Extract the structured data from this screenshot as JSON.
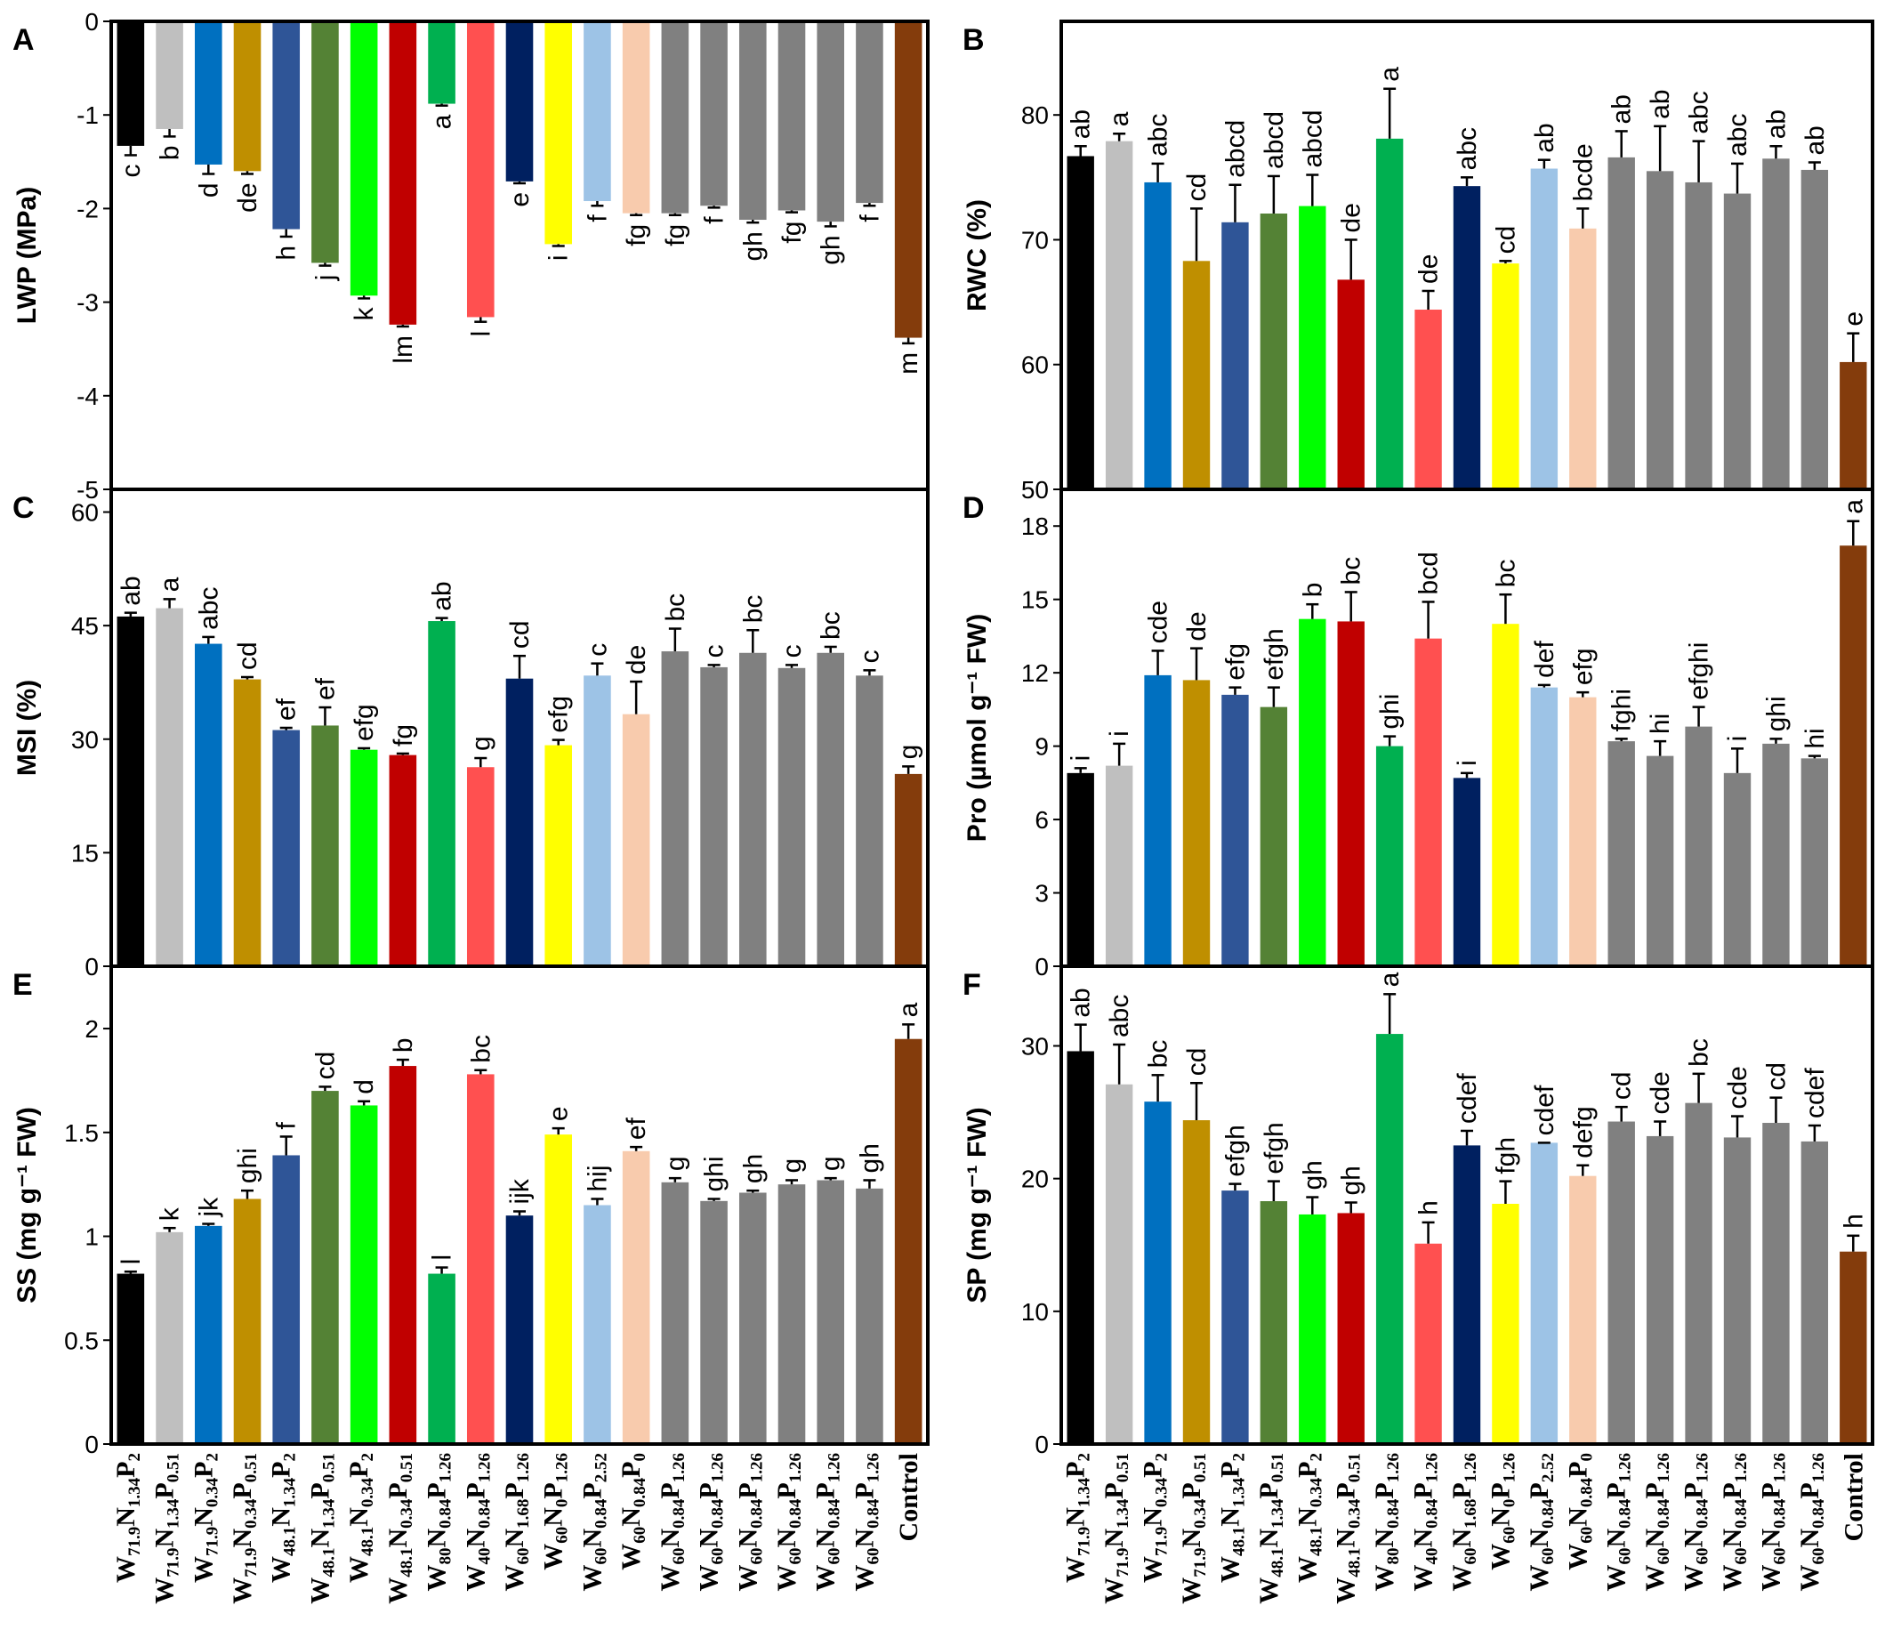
{
  "categories": [
    {
      "w": "71.9",
      "n": "1.34",
      "p": "2"
    },
    {
      "w": "71.9",
      "n": "1.34",
      "p": "0.51"
    },
    {
      "w": "71.9",
      "n": "0.34",
      "p": "2"
    },
    {
      "w": "71.9",
      "n": "0.34",
      "p": "0.51"
    },
    {
      "w": "48.1",
      "n": "1.34",
      "p": "2"
    },
    {
      "w": "48.1",
      "n": "1.34",
      "p": "0.51"
    },
    {
      "w": "48.1",
      "n": "0.34",
      "p": "2"
    },
    {
      "w": "48.1",
      "n": "0.34",
      "p": "0.51"
    },
    {
      "w": "80",
      "n": "0.84",
      "p": "1.26"
    },
    {
      "w": "40",
      "n": "0.84",
      "p": "1.26"
    },
    {
      "w": "60",
      "n": "1.68",
      "p": "1.26"
    },
    {
      "w": "60",
      "n": "0",
      "p": "1.26"
    },
    {
      "w": "60",
      "n": "0.84",
      "p": "2.52"
    },
    {
      "w": "60",
      "n": "0.84",
      "p": "0"
    },
    {
      "w": "60",
      "n": "0.84",
      "p": "1.26"
    },
    {
      "w": "60",
      "n": "0.84",
      "p": "1.26"
    },
    {
      "w": "60",
      "n": "0.84",
      "p": "1.26"
    },
    {
      "w": "60",
      "n": "0.84",
      "p": "1.26"
    },
    {
      "w": "60",
      "n": "0.84",
      "p": "1.26"
    },
    {
      "w": "60",
      "n": "0.84",
      "p": "1.26"
    },
    {
      "control": "Control"
    }
  ],
  "bar_colors": [
    "#000000",
    "#bfbfbf",
    "#0070c0",
    "#bf8f00",
    "#2f5597",
    "#548235",
    "#00ff00",
    "#c00000",
    "#00b050",
    "#ff5050",
    "#002060",
    "#ffff00",
    "#9dc3e6",
    "#f8cbad",
    "#808080",
    "#808080",
    "#808080",
    "#808080",
    "#808080",
    "#808080",
    "#843c0c"
  ],
  "chart_data": [
    {
      "type": "bar",
      "panel": "A",
      "ylabel": "LWP (MPa)",
      "ylim": [
        -5,
        0
      ],
      "ticks": [
        "0",
        "-1",
        "-2",
        "-3",
        "-4",
        "-5"
      ],
      "values": [
        -1.33,
        -1.15,
        -1.53,
        -1.6,
        -2.22,
        -2.58,
        -2.93,
        -3.24,
        -0.88,
        -3.16,
        -1.71,
        -2.38,
        -1.92,
        -2.05,
        -2.05,
        -1.97,
        -2.12,
        -2.02,
        -2.14,
        -1.94,
        -3.38
      ],
      "errors": [
        0.1,
        0.08,
        0.1,
        0.03,
        0.08,
        0.03,
        0.03,
        0.02,
        0.02,
        0.05,
        0.02,
        0.02,
        0.05,
        0.02,
        0.02,
        0.02,
        0.03,
        0.02,
        0.05,
        0.03,
        0.06
      ],
      "letters": [
        "c",
        "b",
        "d",
        "de",
        "h",
        "j",
        "k",
        "lm",
        "a",
        "l",
        "e",
        "i",
        "f",
        "fg",
        "fg",
        "f",
        "gh",
        "fg",
        "gh",
        "f",
        "m"
      ]
    },
    {
      "type": "bar",
      "panel": "B",
      "ylabel": "RWC (%)",
      "ylim": [
        50,
        87.5
      ],
      "ticks": [
        "50",
        "60",
        "70",
        "80"
      ],
      "values": [
        76.7,
        77.9,
        74.6,
        68.3,
        71.4,
        72.1,
        72.7,
        66.8,
        78.1,
        64.4,
        74.3,
        68.1,
        75.7,
        70.9,
        76.6,
        75.5,
        74.6,
        73.7,
        76.5,
        75.6,
        60.2
      ],
      "errors": [
        0.8,
        0.6,
        1.5,
        4.2,
        3.0,
        3.0,
        2.5,
        3.2,
        4.0,
        1.5,
        0.7,
        0.2,
        0.7,
        1.6,
        2.1,
        3.6,
        3.3,
        2.4,
        1.0,
        0.6,
        2.3
      ],
      "letters": [
        "ab",
        "a",
        "abc",
        "cd",
        "abcd",
        "abcd",
        "abcd",
        "de",
        "a",
        "de",
        "abc",
        "cd",
        "ab",
        "bcde",
        "ab",
        "ab",
        "abc",
        "abc",
        "ab",
        "ab",
        "e"
      ]
    },
    {
      "type": "bar",
      "panel": "C",
      "ylabel": "MSI (%)",
      "ylim": [
        0,
        63
      ],
      "ticks": [
        "0",
        "15",
        "30",
        "45",
        "60"
      ],
      "values": [
        46.2,
        47.3,
        42.6,
        37.9,
        31.2,
        31.8,
        28.6,
        27.9,
        45.6,
        26.3,
        38.0,
        29.2,
        38.4,
        33.3,
        41.6,
        39.5,
        41.4,
        39.4,
        41.4,
        38.4,
        25.4
      ],
      "errors": [
        0.5,
        1.2,
        0.9,
        0.3,
        0.3,
        2.4,
        0.2,
        0.2,
        0.4,
        1.2,
        3.0,
        0.7,
        1.6,
        4.3,
        3.0,
        0.3,
        3.0,
        0.4,
        0.8,
        0.7,
        1.0
      ],
      "letters": [
        "ab",
        "a",
        "abc",
        "cd",
        "ef",
        "ef",
        "efg",
        "fg",
        "ab",
        "g",
        "cd",
        "efg",
        "c",
        "de",
        "bc",
        "c",
        "bc",
        "c",
        "bc",
        "c",
        "g"
      ]
    },
    {
      "type": "bar",
      "panel": "D",
      "ylabel": "Pro (µmol g⁻¹ FW)",
      "ylim": [
        0,
        19.5
      ],
      "ticks": [
        "0",
        "3",
        "6",
        "9",
        "12",
        "15",
        "18"
      ],
      "values": [
        7.9,
        8.2,
        11.9,
        11.7,
        11.1,
        10.6,
        14.2,
        14.1,
        9.0,
        13.4,
        7.7,
        14.0,
        11.4,
        11.0,
        9.2,
        8.6,
        9.8,
        7.9,
        9.1,
        8.5,
        17.2
      ],
      "errors": [
        0.2,
        0.9,
        1.0,
        1.3,
        0.3,
        0.8,
        0.6,
        1.2,
        0.4,
        1.5,
        0.2,
        1.2,
        0.1,
        0.2,
        0.1,
        0.6,
        0.8,
        1.0,
        0.2,
        0.1,
        1.0
      ],
      "letters": [
        "i",
        "i",
        "cde",
        "de",
        "efg",
        "efgh",
        "b",
        "bc",
        "ghi",
        "bcd",
        "i",
        "bc",
        "def",
        "efg",
        "fghi",
        "hi",
        "efghi",
        "i",
        "ghi",
        "hi",
        "a"
      ]
    },
    {
      "type": "bar",
      "panel": "E",
      "ylabel": "SS (mg g⁻¹ FW)",
      "ylim": [
        0,
        2.3
      ],
      "ticks": [
        "0",
        "0.5",
        "1",
        "1.5",
        "2"
      ],
      "values": [
        0.82,
        1.02,
        1.05,
        1.18,
        1.39,
        1.7,
        1.63,
        1.82,
        0.82,
        1.78,
        1.1,
        1.49,
        1.15,
        1.41,
        1.26,
        1.17,
        1.21,
        1.25,
        1.27,
        1.23,
        1.95
      ],
      "errors": [
        0.01,
        0.02,
        0.01,
        0.04,
        0.09,
        0.02,
        0.02,
        0.03,
        0.03,
        0.02,
        0.02,
        0.03,
        0.03,
        0.02,
        0.02,
        0.01,
        0.01,
        0.02,
        0.01,
        0.04,
        0.07
      ],
      "letters": [
        "l",
        "k",
        "jk",
        "ghi",
        "f",
        "cd",
        "d",
        "b",
        "l",
        "bc",
        "ijk",
        "e",
        "hij",
        "ef",
        "g",
        "ghi",
        "gh",
        "g",
        "g",
        "gh",
        "a"
      ]
    },
    {
      "type": "bar",
      "panel": "F",
      "ylabel": "SP (mg g⁻¹ FW)",
      "ylim": [
        0,
        36
      ],
      "ticks": [
        "0",
        "10",
        "20",
        "30"
      ],
      "values": [
        29.6,
        27.1,
        25.8,
        24.4,
        19.1,
        18.3,
        17.3,
        17.4,
        30.9,
        15.1,
        22.5,
        18.1,
        22.7,
        20.2,
        24.3,
        23.2,
        25.7,
        23.1,
        24.2,
        22.8,
        14.5
      ],
      "errors": [
        2.0,
        3.0,
        2.0,
        2.8,
        0.5,
        1.5,
        1.3,
        0.8,
        3.0,
        1.6,
        1.1,
        1.7,
        0.0,
        0.8,
        1.1,
        1.1,
        2.2,
        1.6,
        1.9,
        1.2,
        1.2
      ],
      "letters": [
        "ab",
        "abc",
        "bc",
        "cd",
        "efgh",
        "efgh",
        "gh",
        "gh",
        "a",
        "h",
        "cdef",
        "fgh",
        "cdef",
        "defg",
        "cd",
        "cde",
        "bc",
        "cde",
        "cd",
        "cdef",
        "h"
      ]
    }
  ]
}
